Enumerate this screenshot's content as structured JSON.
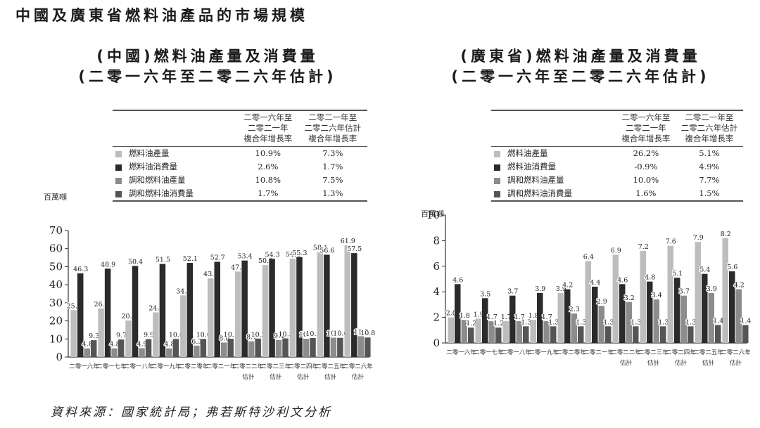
{
  "page": {
    "main_title": "中國及廣東省燃料油產品的市場規模",
    "source": "資料來源：國家統計局；弗若斯特沙利文分析"
  },
  "colors": {
    "fuel_oil_production": "#bdbdbd",
    "fuel_oil_consumption": "#2b2b2b",
    "blended_fuel_oil_production": "#8c8c8c",
    "blended_fuel_oil_consumption": "#555555"
  },
  "charts": [
    {
      "title_line1": "(中國)燃料油產量及消費量",
      "title_line2": "(二零一六年至二零二六年估計)",
      "unit": "百萬噸",
      "table": {
        "col1_header": [
          "二零一六年至",
          "二零二一年",
          "複合年增長率"
        ],
        "col2_header": [
          "二零二一年至",
          "二零二六年估計",
          "複合年增長率"
        ],
        "rows": [
          {
            "label": "燃料油產量",
            "cagr1": "10.9%",
            "cagr2": "7.3%"
          },
          {
            "label": "燃料油消費量",
            "cagr1": "2.6%",
            "cagr2": "1.7%"
          },
          {
            "label": "調和燃料油產量",
            "cagr1": "10.8%",
            "cagr2": "7.5%"
          },
          {
            "label": "調和燃料油消費量",
            "cagr1": "1.7%",
            "cagr2": "1.3%"
          }
        ]
      }
    },
    {
      "title_line1": "(廣東省)燃料油產量及消費量",
      "title_line2": "(二零一六年至二零二六年估計)",
      "unit": "百萬噸",
      "table": {
        "col1_header": [
          "二零一六年至",
          "二零二一年",
          "複合年增長率"
        ],
        "col2_header": [
          "二零二一年至",
          "二零二六年估計",
          "複合年增長率"
        ],
        "rows": [
          {
            "label": "燃料油產量",
            "cagr1": "26.2%",
            "cagr2": "5.1%"
          },
          {
            "label": "燃料油消費量",
            "cagr1": "-0.9%",
            "cagr2": "4.9%"
          },
          {
            "label": "調和燃料油產量",
            "cagr1": "10.0%",
            "cagr2": "7.7%"
          },
          {
            "label": "調和燃料油消費量",
            "cagr1": "1.6%",
            "cagr2": "1.5%"
          }
        ]
      }
    }
  ],
  "chart_data": [
    {
      "type": "bar",
      "title": "(中國)燃料油產量及消費量 (二零一六年至二零二六年估計)",
      "xlabel": "",
      "ylabel": "百萬噸",
      "ylim": [
        0,
        70
      ],
      "yticks": [
        0,
        10,
        20,
        30,
        40,
        50,
        60,
        70
      ],
      "grid": false,
      "legend_position": "table above chart",
      "categories": [
        "二零一六年",
        "二零一七年",
        "二零一八年",
        "二零一九年",
        "二零二零年",
        "二零二一年",
        "二零二二年\n估計",
        "二零二三年\n估計",
        "二零二四年\n估計",
        "二零二五年\n估計",
        "二零二六年\n估計"
      ],
      "series": [
        {
          "name": "燃料油產量",
          "values": [
            25.9,
            26.9,
            20.2,
            24.7,
            34.1,
            43.5,
            47.3,
            50.9,
            54.4,
            58.1,
            61.9
          ]
        },
        {
          "name": "燃料油消費量",
          "values": [
            46.3,
            48.9,
            50.4,
            51.5,
            52.1,
            52.7,
            53.4,
            54.3,
            55.3,
            56.6,
            57.5
          ]
        },
        {
          "name": "調和燃料油產量",
          "values": [
            4.8,
            4.8,
            4.9,
            4.8,
            6.3,
            8.0,
            8.7,
            9.4,
            10.1,
            10.7,
            11.5
          ]
        },
        {
          "name": "調和燃料油消費量",
          "values": [
            9.3,
            9.7,
            9.9,
            10.0,
            10.0,
            10.1,
            10.2,
            10.3,
            10.5,
            10.6,
            10.8
          ]
        }
      ]
    },
    {
      "type": "bar",
      "title": "(廣東省)燃料油產量及消費量 (二零一六年至二零二六年估計)",
      "xlabel": "",
      "ylabel": "百萬噸",
      "ylim": [
        0,
        10
      ],
      "yticks": [
        0,
        2,
        4,
        6,
        8,
        10
      ],
      "grid": false,
      "legend_position": "table above chart",
      "categories": [
        "二零一六年",
        "二零一七年",
        "二零一八年",
        "二零一九年",
        "二零二零年",
        "二零二一年",
        "二零二二年\n估計",
        "二零二三年\n估計",
        "二零二四年\n估計",
        "二零二五年\n估計",
        "二零二六年\n估計"
      ],
      "series": [
        {
          "name": "燃料油產量",
          "values": [
            2.0,
            1.9,
            1.7,
            1.8,
            3.9,
            6.4,
            6.9,
            7.2,
            7.6,
            7.9,
            8.2
          ]
        },
        {
          "name": "燃料油消費量",
          "values": [
            4.6,
            3.5,
            3.7,
            3.9,
            4.2,
            4.4,
            4.6,
            4.8,
            5.1,
            5.4,
            5.6
          ]
        },
        {
          "name": "調和燃料油產量",
          "values": [
            1.8,
            1.7,
            1.7,
            1.7,
            2.3,
            2.9,
            3.2,
            3.4,
            3.7,
            3.9,
            4.2
          ]
        },
        {
          "name": "調和燃料油消費量",
          "values": [
            1.2,
            1.2,
            1.3,
            1.3,
            1.3,
            1.3,
            1.3,
            1.3,
            1.3,
            1.4,
            1.4
          ]
        }
      ]
    }
  ]
}
